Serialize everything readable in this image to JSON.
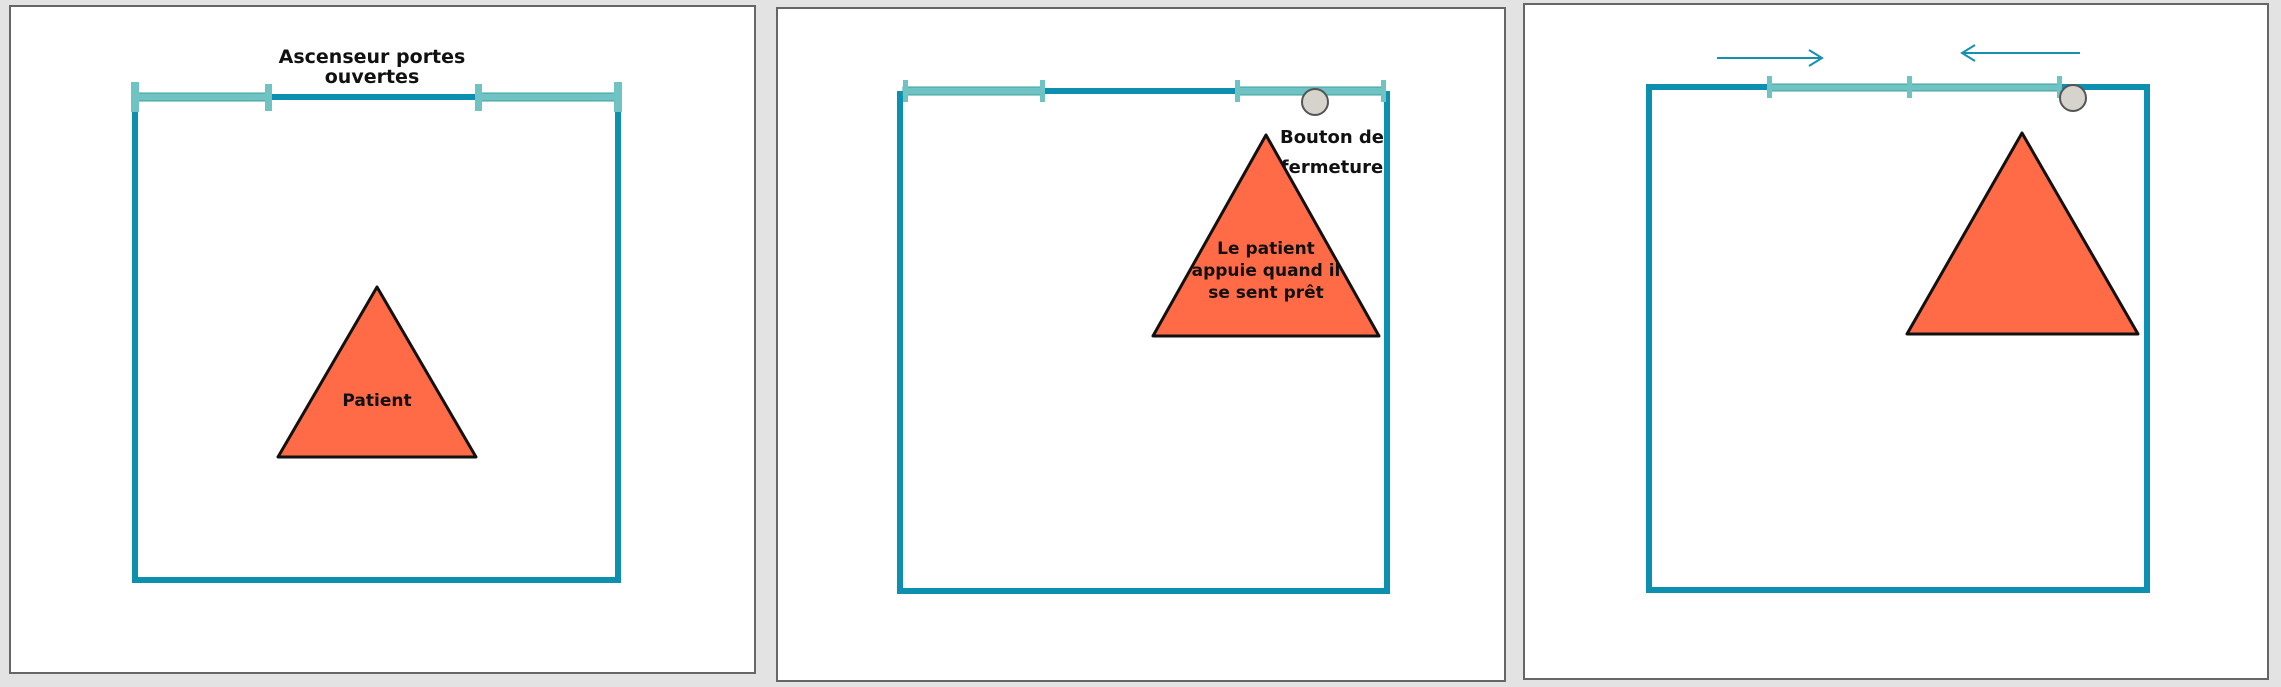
{
  "colors": {
    "background": "#e3e3e3",
    "panel_fill": "#ffffff",
    "panel_border": "#666666",
    "wall": "#0d8fb0",
    "door": "#6fc3c3",
    "door_outline": "#3e9f9f",
    "patient_fill": "#ff6b47",
    "patient_stroke": "#111111",
    "button_fill": "#d6d3cc",
    "button_stroke": "#555555",
    "arrow": "#1690b0"
  },
  "panels": [
    {
      "id": "open",
      "doors_state": "open",
      "label_lines": [
        "Ascenseur portes",
        "ouvertes"
      ],
      "patient_label": [
        "Patient"
      ]
    },
    {
      "id": "press",
      "doors_state": "open",
      "button_label_lines": [
        "Bouton de",
        "fermeture"
      ],
      "patient_label": [
        "Le patient",
        "appuie quand il",
        "se sent prêt"
      ]
    },
    {
      "id": "closing",
      "doors_state": "closing",
      "icons": [
        "arrow-right-icon",
        "arrow-left-icon"
      ]
    }
  ]
}
